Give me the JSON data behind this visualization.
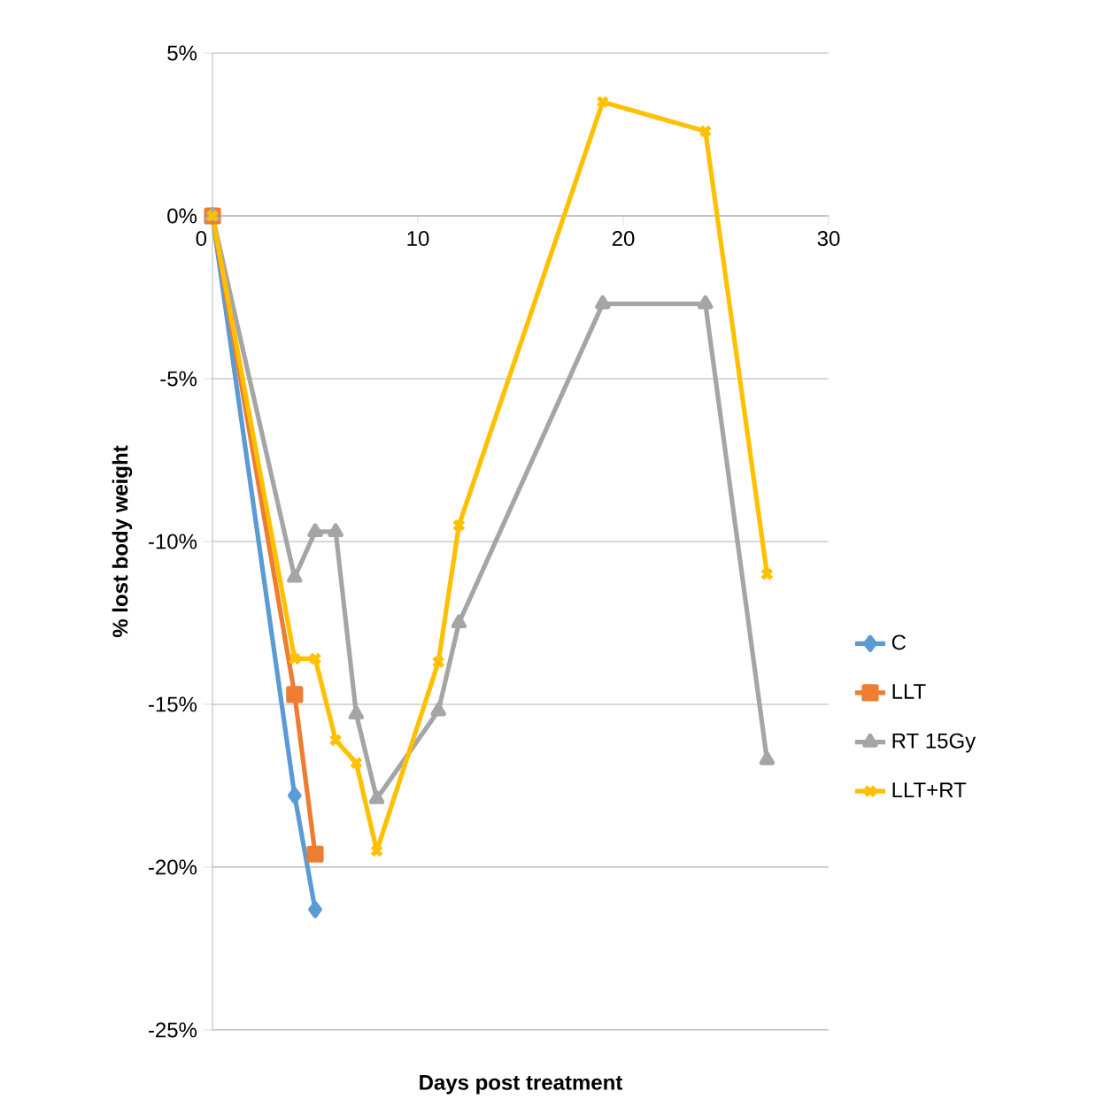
{
  "chart_data": {
    "type": "line",
    "xlabel": "Days post treatment",
    "ylabel": "% lost body weight",
    "xlim": [
      0,
      30
    ],
    "xticks": [
      0,
      10,
      20,
      30
    ],
    "ylim": [
      -25,
      5
    ],
    "yticks": [
      {
        "value": 5,
        "label": "5%"
      },
      {
        "value": 0,
        "label": "0%"
      },
      {
        "value": -5,
        "label": "-5%"
      },
      {
        "value": -10,
        "label": "-10%"
      },
      {
        "value": -15,
        "label": "-15%"
      },
      {
        "value": -20,
        "label": "-20%"
      },
      {
        "value": -25,
        "label": "-25%"
      }
    ],
    "grid": "y",
    "legend": "right",
    "line_style": "solid",
    "series": [
      {
        "name": "C",
        "color": "#5b9bd5",
        "marker": "diamond",
        "x": [
          0,
          4,
          5
        ],
        "values": [
          0,
          -17.8,
          -21.3
        ]
      },
      {
        "name": "LLT",
        "color": "#ed7d31",
        "marker": "square",
        "x": [
          0,
          4,
          5
        ],
        "values": [
          0,
          -14.7,
          -19.6
        ]
      },
      {
        "name": "RT 15Gy",
        "color": "#a5a5a5",
        "marker": "triangle",
        "x": [
          0,
          4,
          5,
          6,
          7,
          8,
          11,
          12,
          19,
          24,
          27
        ],
        "values": [
          0,
          -11.1,
          -9.7,
          -9.7,
          -15.3,
          -17.9,
          -15.2,
          -12.5,
          -2.7,
          -2.7,
          -16.7
        ]
      },
      {
        "name": "LLT+RT",
        "color": "#ffc000",
        "marker": "cross",
        "x": [
          0,
          4,
          5,
          6,
          7,
          8,
          11,
          12,
          19,
          24,
          27
        ],
        "values": [
          0,
          -13.6,
          -13.6,
          -16.1,
          -16.8,
          -19.5,
          -13.7,
          -9.5,
          3.5,
          2.6,
          -11.0
        ]
      }
    ]
  }
}
